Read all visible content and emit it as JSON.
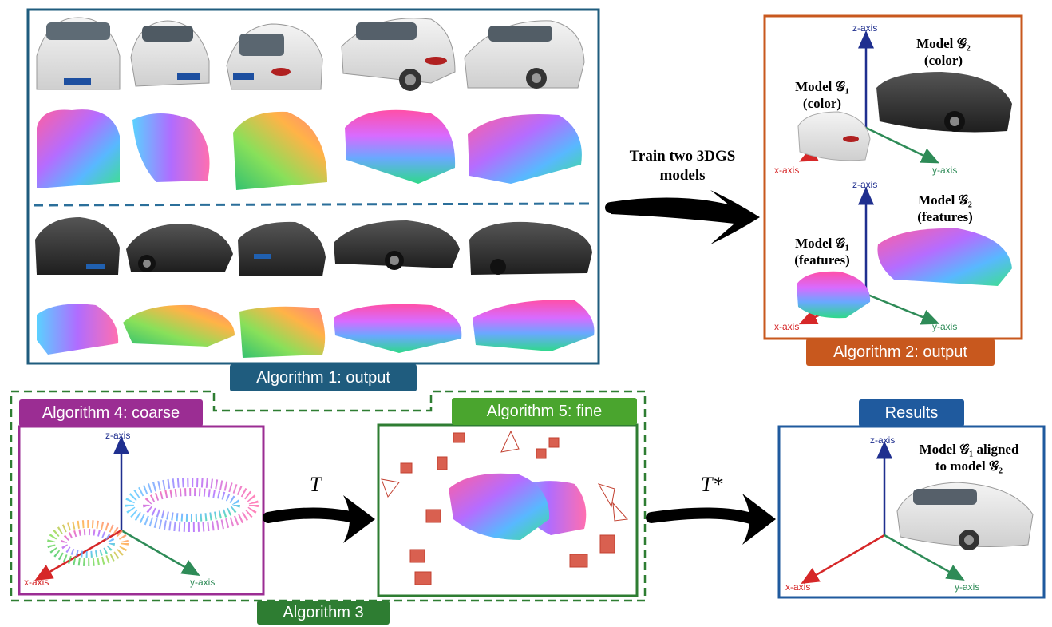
{
  "algorithm1": {
    "tag": "Algorithm 1: output",
    "color": "#1f5c7e"
  },
  "algorithm2": {
    "tag": "Algorithm 2: output",
    "color": "#c8581e",
    "model_g2_color": {
      "line1": "Model 𝒢₂",
      "line2": "(color)"
    },
    "model_g1_color": {
      "line1": "Model 𝒢₁",
      "line2": "(color)"
    },
    "model_g2_features": {
      "line1": "Model 𝒢₂",
      "line2": "(features)"
    },
    "model_g1_features": {
      "line1": "Model 𝒢₁",
      "line2": "(features)"
    }
  },
  "train_label": {
    "line1": "Train two 3DGS",
    "line2": "models"
  },
  "algorithm3": {
    "tag": "Algorithm 3",
    "color": "#2e7d32"
  },
  "algorithm4": {
    "tag": "Algorithm 4: coarse",
    "color": "#9b2d93"
  },
  "algorithm5": {
    "tag": "Algorithm 5: fine",
    "color": "#4aa52e"
  },
  "results": {
    "tag": "Results",
    "color": "#1f5a9e",
    "label_line1": "Model 𝒢₁ aligned",
    "label_line2": "to model 𝒢₂"
  },
  "transform_coarse": "T",
  "transform_fine": "T*",
  "axes": {
    "x": "x-axis",
    "y": "y-axis",
    "z": "z-axis"
  },
  "axis_colors": {
    "x": "#d62728",
    "y": "#2e8b57",
    "z": "#1f2f8f"
  }
}
